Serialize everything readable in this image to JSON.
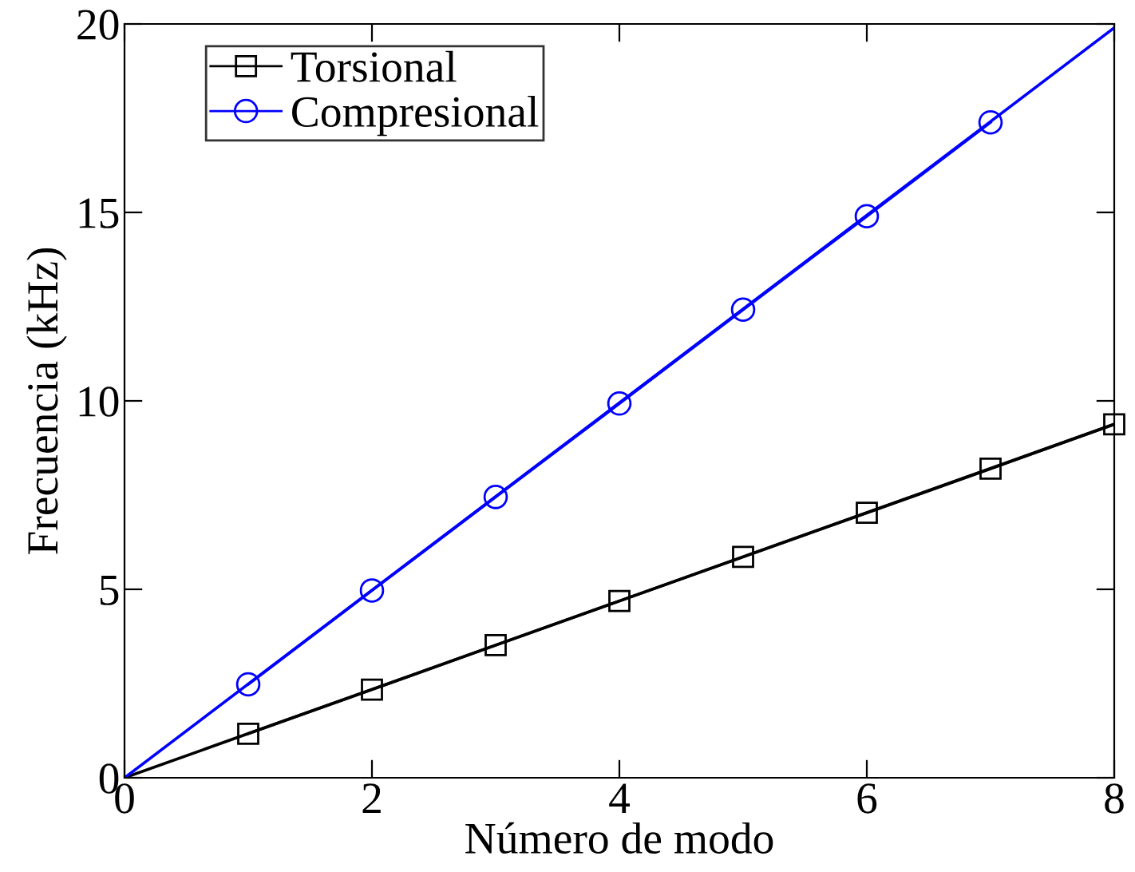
{
  "chart_data": {
    "type": "line",
    "xlabel": "Número de modo",
    "ylabel": "Frecuencia (kHz)",
    "xlim": [
      0,
      8
    ],
    "ylim": [
      0,
      20
    ],
    "xticks": [
      0,
      2,
      4,
      6,
      8
    ],
    "yticks": [
      0,
      5,
      10,
      15,
      20
    ],
    "grid": false,
    "legend": "top left",
    "series": [
      {
        "name": "Torsional",
        "color": "#000000",
        "marker": "square",
        "x": [
          1,
          2,
          3,
          4,
          5,
          6,
          7,
          8
        ],
        "values": [
          1.17,
          2.34,
          3.52,
          4.69,
          5.86,
          7.03,
          8.2,
          9.38
        ]
      },
      {
        "name": "Compresional",
        "color": "#0000ff",
        "marker": "circle",
        "x": [
          1,
          2,
          3,
          4,
          5,
          6,
          7
        ],
        "values": [
          2.48,
          4.97,
          7.45,
          9.93,
          12.42,
          14.9,
          17.39
        ]
      },
      {
        "color": "#000000",
        "marker": "none",
        "x": [
          0,
          8
        ],
        "values": [
          0,
          9.38
        ]
      },
      {
        "color": "#0000ff",
        "marker": "none",
        "x": [
          0,
          8
        ],
        "values": [
          0,
          19.9
        ]
      }
    ]
  }
}
